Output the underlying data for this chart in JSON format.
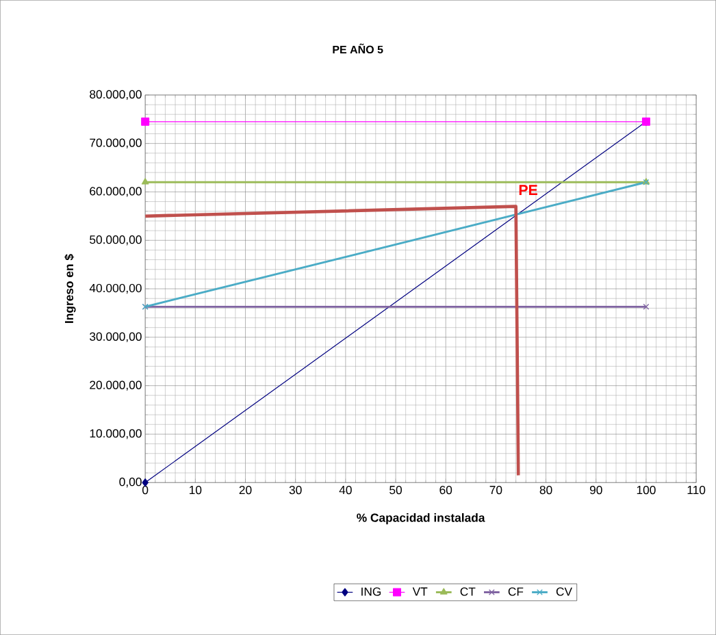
{
  "chart_data": {
    "type": "line",
    "title": "PE AÑO 5",
    "xlabel": "% Capacidad instalada",
    "ylabel": "Ingreso en $",
    "x": [
      0,
      100
    ],
    "series": [
      {
        "name": "ING",
        "color": "#000080",
        "marker": "diamond",
        "values": [
          0,
          74500
        ]
      },
      {
        "name": "VT",
        "color": "#ff00ff",
        "marker": "square",
        "values": [
          74500,
          74500
        ]
      },
      {
        "name": "CT",
        "color": "#9bbb59",
        "marker": "triangle",
        "values": [
          62000,
          62000
        ]
      },
      {
        "name": "CF",
        "color": "#8064a2",
        "marker": "cross",
        "values": [
          36300,
          36300
        ]
      },
      {
        "name": "CV",
        "color": "#4bacc6",
        "marker": "cross",
        "values": [
          36300,
          62000
        ]
      },
      {
        "color": "#c0504d",
        "marker": "none",
        "x": [
          0,
          74,
          74.5
        ],
        "values": [
          55000,
          57000,
          1500
        ]
      }
    ],
    "annotations": [
      "PE"
    ],
    "xlim": [
      0,
      110
    ],
    "xticks": [
      0,
      10,
      20,
      30,
      40,
      50,
      60,
      70,
      80,
      90,
      100,
      110
    ],
    "ylim": [
      0,
      80000
    ],
    "yticks": [
      {
        "value": 0,
        "label": "0,00"
      },
      {
        "value": 10000,
        "label": "10.000,00"
      },
      {
        "value": 20000,
        "label": "20.000,00"
      },
      {
        "value": 30000,
        "label": "30.000,00"
      },
      {
        "value": 40000,
        "label": "40.000,00"
      },
      {
        "value": 50000,
        "label": "50.000,00"
      },
      {
        "value": 60000,
        "label": "60.000,00"
      },
      {
        "value": 70000,
        "label": "70.000,00"
      },
      {
        "value": 80000,
        "label": "80.000,00"
      }
    ],
    "grid": true,
    "legend": "bottom"
  }
}
